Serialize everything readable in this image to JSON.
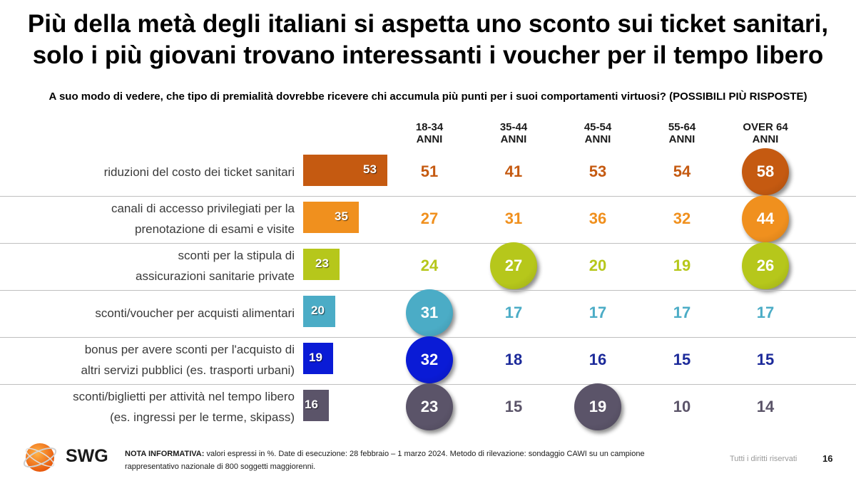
{
  "title": {
    "line1": "Più della metà degli italiani si aspetta uno sconto sui ticket sanitari,",
    "line2": "solo i più giovani trovano interessanti i voucher per il tempo libero"
  },
  "question": "A suo modo di vedere, che tipo di premialità dovrebbe ricevere chi accumula più punti per i suoi comportamenti virtuosi? (POSSIBILI PIÙ RISPOSTE)",
  "chart_data": {
    "type": "table",
    "title": "A suo modo di vedere, che tipo di premialità dovrebbe ricevere chi accumula più punti per i suoi comportamenti virtuosi? (POSSIBILI PIÙ RISPOSTE)",
    "unit": "%",
    "columns": [
      {
        "line1": "18-34",
        "line2": "ANNI"
      },
      {
        "line1": "35-44",
        "line2": "ANNI"
      },
      {
        "line1": "45-54",
        "line2": "ANNI"
      },
      {
        "line1": "55-64",
        "line2": "ANNI"
      },
      {
        "line1": "OVER 64",
        "line2": "ANNI"
      }
    ],
    "bar_max": 60,
    "rows": [
      {
        "label1": "riduzioni del costo dei ticket sanitari",
        "label2": "",
        "total": 53,
        "color": "#c55a11",
        "values": [
          51,
          41,
          53,
          54,
          58
        ],
        "highlight": [
          false,
          false,
          false,
          false,
          true
        ]
      },
      {
        "label1": "canali di accesso privilegiati per la",
        "label2": "prenotazione di esami e visite",
        "total": 35,
        "color": "#f0901e",
        "values": [
          27,
          31,
          36,
          32,
          44
        ],
        "highlight": [
          false,
          false,
          false,
          false,
          true
        ]
      },
      {
        "label1": "sconti per la stipula di",
        "label2": "assicurazioni sanitarie private",
        "total": 23,
        "color": "#b6c71b",
        "values": [
          24,
          27,
          20,
          19,
          26
        ],
        "highlight": [
          false,
          true,
          false,
          false,
          true
        ]
      },
      {
        "label1": "sconti/voucher per acquisti alimentari",
        "label2": "",
        "total": 20,
        "color": "#4bacc6",
        "values": [
          31,
          17,
          17,
          17,
          17
        ],
        "highlight": [
          true,
          false,
          false,
          false,
          false
        ]
      },
      {
        "label1": "bonus per avere sconti per l'acquisto di",
        "label2": "altri servizi pubblici (es. trasporti urbani)",
        "total": 19,
        "color": "#0a1bd6",
        "text_color": "#1c2a9a",
        "values": [
          32,
          18,
          16,
          15,
          15
        ],
        "highlight": [
          true,
          false,
          false,
          false,
          false
        ]
      },
      {
        "label1": "sconti/biglietti per attività nel tempo libero",
        "label2": "(es. ingressi per le terme, skipass)",
        "total": 16,
        "color": "#5b5469",
        "values": [
          23,
          15,
          19,
          10,
          14
        ],
        "highlight": [
          true,
          false,
          true,
          false,
          false
        ]
      }
    ]
  },
  "footer": {
    "brand": "SWG",
    "nota_label": "NOTA INFORMATIVA:",
    "nota_line1": " valori espressi in %. Date di esecuzione: 28 febbraio – 1 marzo 2024. Metodo di rilevazione: sondaggio CAWI su un campione",
    "nota_line2": "rappresentativo nazionale di 800 soggetti maggiorenni.",
    "rights": "Tutti i diritti riservati",
    "page": "16"
  }
}
